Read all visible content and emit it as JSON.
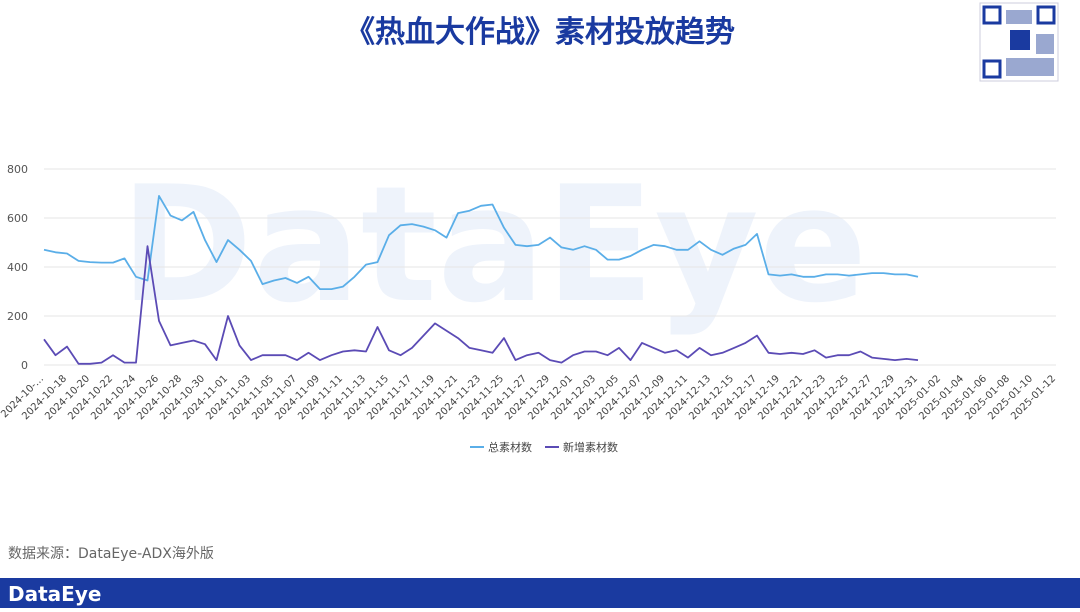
{
  "chart_data": {
    "type": "line",
    "title": "《热血大作战》素材投放趋势",
    "watermark": "DataEye",
    "source": "数据来源：DataEye-ADX海外版",
    "brand": "DataEye",
    "categories": [
      "2024-10-…",
      null,
      "2024-10-18",
      null,
      "2024-10-20",
      null,
      "2024-10-22",
      null,
      "2024-10-24",
      null,
      "2024-10-26",
      null,
      "2024-10-28",
      null,
      "2024-10-30",
      null,
      "2024-11-01",
      null,
      "2024-11-03",
      null,
      "2024-11-05",
      null,
      "2024-11-07",
      null,
      "2024-11-09",
      null,
      "2024-11-11",
      null,
      "2024-11-13",
      null,
      "2024-11-15",
      null,
      "2024-11-17",
      null,
      "2024-11-19",
      null,
      "2024-11-21",
      null,
      "2024-11-23",
      null,
      "2024-11-25",
      null,
      "2024-11-27",
      null,
      "2024-11-29",
      null,
      "2024-12-01",
      null,
      "2024-12-03",
      null,
      "2024-12-05",
      null,
      "2024-12-07",
      null,
      "2024-12-09",
      null,
      "2024-12-11",
      null,
      "2024-12-13",
      null,
      "2024-12-15",
      null,
      "2024-12-17",
      null,
      "2024-12-19",
      null,
      "2024-12-21",
      null,
      "2024-12-23",
      null,
      "2024-12-25",
      null,
      "2024-12-27",
      null,
      "2024-12-29",
      null,
      "2024-12-31",
      null,
      "2025-01-02",
      null,
      "2025-01-04",
      null,
      "2025-01-06",
      null,
      "2025-01-08",
      null,
      "2025-01-10",
      null,
      "2025-01-12"
    ],
    "series": [
      {
        "name": "总素材数",
        "color": "#5aaee8",
        "values": [
          470,
          460,
          455,
          425,
          420,
          418,
          418,
          435,
          360,
          345,
          690,
          610,
          590,
          625,
          510,
          420,
          510,
          470,
          425,
          330,
          345,
          355,
          335,
          360,
          310,
          310,
          320,
          360,
          410,
          420,
          530,
          570,
          575,
          565,
          550,
          520,
          620,
          630,
          650,
          655,
          560,
          490,
          485,
          490,
          520,
          480,
          470,
          485,
          470,
          430,
          430,
          445,
          470,
          490,
          485,
          470,
          470,
          505,
          470,
          450,
          475,
          490,
          535,
          370,
          365,
          370,
          360,
          360,
          370,
          370,
          365,
          370,
          375,
          375,
          370,
          370,
          360,
          null,
          null,
          null,
          null,
          null,
          null,
          null,
          null,
          null,
          null,
          null,
          null
        ]
      },
      {
        "name": "新增素材数",
        "color": "#5b4bb5",
        "values": [
          105,
          40,
          75,
          5,
          5,
          10,
          40,
          10,
          10,
          485,
          180,
          80,
          90,
          100,
          85,
          20,
          200,
          80,
          20,
          40,
          40,
          40,
          20,
          50,
          20,
          40,
          55,
          60,
          55,
          155,
          60,
          40,
          70,
          120,
          170,
          140,
          110,
          70,
          60,
          50,
          110,
          20,
          40,
          50,
          20,
          10,
          40,
          55,
          55,
          40,
          70,
          20,
          90,
          70,
          50,
          60,
          30,
          70,
          40,
          50,
          70,
          90,
          120,
          50,
          45,
          50,
          45,
          60,
          30,
          40,
          40,
          55,
          30,
          25,
          20,
          25,
          20,
          null,
          null,
          null,
          null,
          null,
          null,
          null,
          null,
          null,
          null,
          null,
          null
        ]
      }
    ],
    "ylim": [
      0,
      800
    ],
    "yticks": [
      0,
      200,
      400,
      600,
      800
    ],
    "grid": true
  }
}
